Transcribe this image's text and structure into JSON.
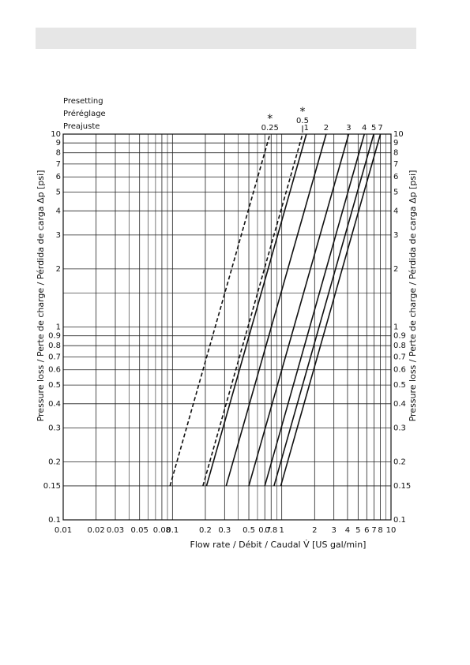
{
  "chart_data": {
    "type": "line",
    "ylabel": "Pressure loss / Perte de charge / Pérdida de carga Δp [psi]",
    "xlabel": "Flow rate / Débit / Caudal V̇ [US gal/min]",
    "legend_title": [
      "Presetting",
      "Préréglage",
      "Preajuste"
    ],
    "log_x": true,
    "log_y": true,
    "grid": true,
    "xlim": [
      0.01,
      10
    ],
    "ylim": [
      0.1,
      10
    ],
    "xticks": [
      0.01,
      0.02,
      0.03,
      0.05,
      0.08,
      0.1,
      0.2,
      0.3,
      0.5,
      0.7,
      0.8,
      1,
      2,
      3,
      4,
      5,
      6,
      7,
      8,
      10
    ],
    "xminor": [
      0.04,
      0.06,
      0.07,
      0.09,
      0.4,
      0.6,
      0.9,
      9
    ],
    "yticks": [
      0.1,
      0.15,
      0.2,
      0.3,
      0.4,
      0.5,
      0.6,
      0.7,
      0.8,
      0.9,
      1,
      2,
      3,
      4,
      5,
      6,
      7,
      8,
      9,
      10
    ],
    "yminor": [
      1.5
    ],
    "y": [
      0.15,
      10
    ],
    "color": "#111111",
    "series": [
      {
        "name": "0.25",
        "note": "*",
        "dashed": true,
        "values": [
          0.095,
          0.78
        ]
      },
      {
        "name": "0.5",
        "note": "*",
        "dashed": true,
        "values": [
          0.19,
          1.55
        ]
      },
      {
        "name": "1",
        "dashed": false,
        "values": [
          0.205,
          1.68
        ]
      },
      {
        "name": "2",
        "dashed": false,
        "values": [
          0.31,
          2.55
        ]
      },
      {
        "name": "3",
        "dashed": false,
        "values": [
          0.5,
          4.1
        ]
      },
      {
        "name": "4",
        "dashed": false,
        "values": [
          0.7,
          5.7
        ]
      },
      {
        "name": "5",
        "dashed": false,
        "values": [
          0.85,
          6.95
        ]
      },
      {
        "name": "7",
        "dashed": false,
        "values": [
          0.98,
          8.0
        ]
      }
    ]
  }
}
